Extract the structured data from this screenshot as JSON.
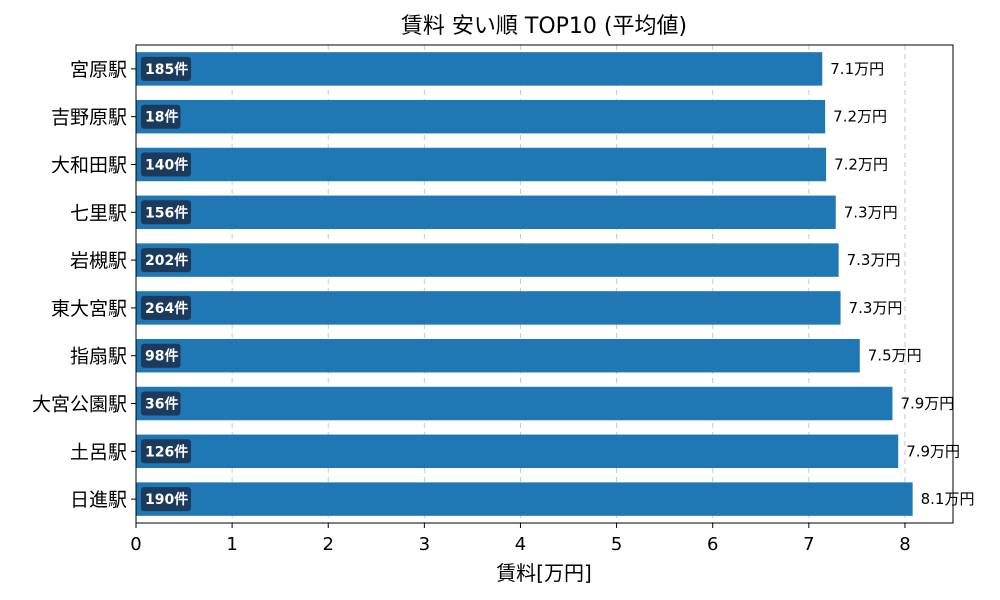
{
  "chart_data": {
    "type": "bar",
    "orientation": "horizontal",
    "title": "賃料 安い順 TOP10 (平均値)",
    "xlabel": "賃料[万円]",
    "ylabel": "",
    "xlim": [
      0,
      8.5
    ],
    "xticks": [
      0,
      1,
      2,
      3,
      4,
      5,
      6,
      7,
      8
    ],
    "grid": "x-dashed",
    "bar_color": "#1f77b4",
    "count_badge_color": "#1b3a5c",
    "categories": [
      "宮原駅",
      "吉野原駅",
      "大和田駅",
      "七里駅",
      "岩槻駅",
      "東大宮駅",
      "指扇駅",
      "大宮公園駅",
      "土呂駅",
      "日進駅"
    ],
    "values": [
      7.14,
      7.17,
      7.18,
      7.28,
      7.31,
      7.33,
      7.53,
      7.87,
      7.93,
      8.08
    ],
    "value_labels": [
      "7.1万円",
      "7.2万円",
      "7.2万円",
      "7.3万円",
      "7.3万円",
      "7.3万円",
      "7.5万円",
      "7.9万円",
      "7.9万円",
      "8.1万円"
    ],
    "count_labels": [
      "185件",
      "18件",
      "140件",
      "156件",
      "202件",
      "264件",
      "98件",
      "36件",
      "126件",
      "190件"
    ]
  }
}
